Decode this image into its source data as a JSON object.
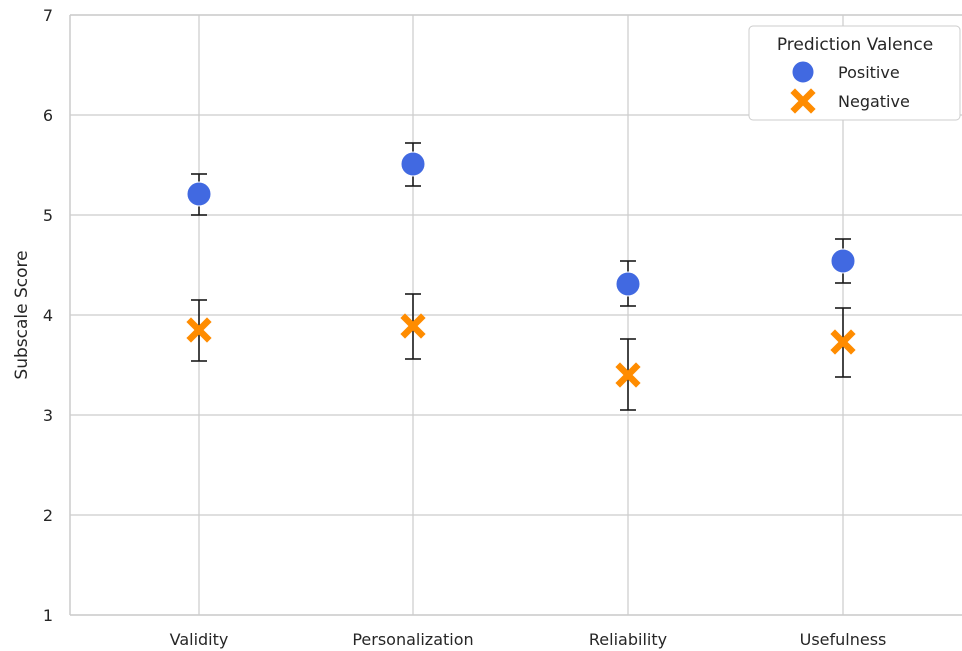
{
  "chart_data": {
    "type": "scatter",
    "title": "",
    "xlabel": "",
    "ylabel": "Subscale Score",
    "ylim": [
      1,
      7
    ],
    "yticks": [
      "1",
      "2",
      "3",
      "4",
      "5",
      "6",
      "7"
    ],
    "categories": [
      "Validity",
      "Personalization",
      "Reliability",
      "Usefulness"
    ],
    "grid": true,
    "legend": {
      "title": "Prediction Valence",
      "position": "top-right"
    },
    "series": [
      {
        "name": "Positive",
        "marker": "circle",
        "color": "#4169e1",
        "values": [
          5.21,
          5.51,
          4.31,
          4.54
        ],
        "err_low": [
          5.0,
          5.29,
          4.09,
          4.32
        ],
        "err_high": [
          5.41,
          5.72,
          4.54,
          4.76
        ]
      },
      {
        "name": "Negative",
        "marker": "x",
        "color": "#ff8c00",
        "values": [
          3.85,
          3.89,
          3.4,
          3.73
        ],
        "err_low": [
          3.54,
          3.56,
          3.05,
          3.38
        ],
        "err_high": [
          4.15,
          4.21,
          3.76,
          4.07
        ]
      }
    ]
  }
}
